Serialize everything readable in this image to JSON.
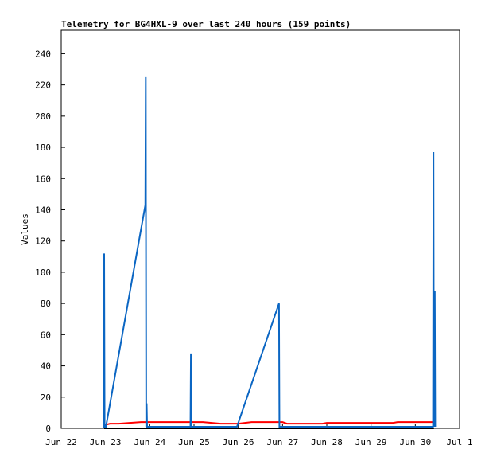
{
  "chart_data": {
    "type": "line",
    "title": "Telemetry for BG4HXL-9 over last 240 hours (159 points)",
    "y_label": "Values",
    "xlim": [
      0,
      9
    ],
    "xticks": [
      {
        "value": 0,
        "label": "Jun 22"
      },
      {
        "value": 1,
        "label": "Jun 23"
      },
      {
        "value": 2,
        "label": "Jun 24"
      },
      {
        "value": 3,
        "label": "Jun 25"
      },
      {
        "value": 4,
        "label": "Jun 26"
      },
      {
        "value": 5,
        "label": "Jun 27"
      },
      {
        "value": 6,
        "label": "Jun 28"
      },
      {
        "value": 7,
        "label": "Jun 29"
      },
      {
        "value": 8,
        "label": "Jun 30"
      },
      {
        "value": 9,
        "label": "Jul 1"
      }
    ],
    "ylim": [
      0,
      255
    ],
    "yticks": [
      0,
      20,
      40,
      60,
      80,
      100,
      120,
      140,
      160,
      180,
      200,
      220,
      240
    ],
    "series": [
      {
        "color": "#000000",
        "x": [
          0.97,
          8.42
        ],
        "values": [
          0,
          0
        ]
      },
      {
        "color": "#ff0000",
        "x": [
          0.97,
          1.1,
          1.3,
          1.8,
          2.5,
          3.2,
          3.6,
          4.0,
          4.3,
          5.0,
          5.1,
          5.9,
          6.0,
          7.5,
          7.6,
          8.42
        ],
        "values": [
          2,
          3,
          3,
          4,
          4,
          4,
          3,
          3,
          4,
          4,
          3,
          3,
          3.5,
          3.5,
          4,
          4
        ]
      },
      {
        "color": "#0b66c3",
        "x": [
          0.96,
          0.97,
          0.98,
          1.01,
          1.9,
          1.91,
          1.92,
          1.93,
          1.94,
          2.92,
          2.93,
          2.94,
          3.97,
          4.92,
          4.93,
          8.4,
          8.41,
          8.42,
          8.44,
          8.45
        ],
        "values": [
          0,
          112,
          1,
          1,
          143,
          225,
          1,
          16,
          1,
          1,
          48,
          1,
          1,
          80,
          1,
          1,
          177,
          1,
          88,
          1
        ]
      }
    ]
  }
}
